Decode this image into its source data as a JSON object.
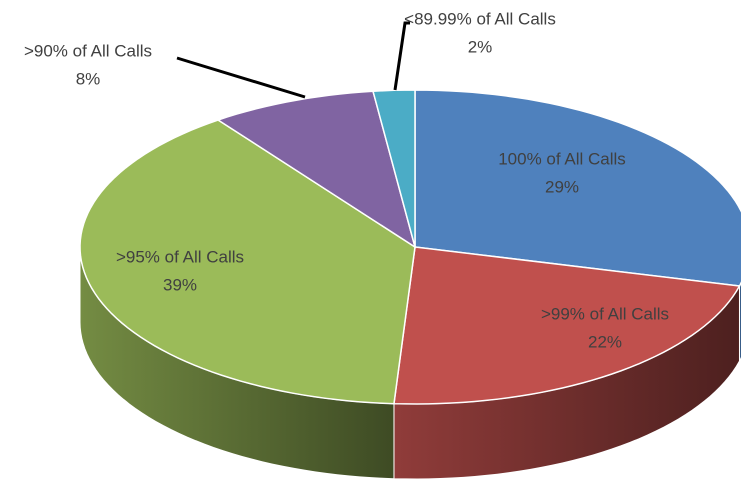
{
  "chart_data": {
    "type": "pie",
    "categories": [
      "100% of All Calls",
      ">99% of All Calls",
      ">95% of All Calls",
      ">90% of All Calls",
      "<89.99% of All Calls"
    ],
    "values": [
      29,
      22,
      39,
      8,
      2
    ],
    "value_labels": [
      "29%",
      "22%",
      "39%",
      "8%",
      "2%"
    ],
    "colors": [
      "#4f81bd",
      "#c0504d",
      "#9bbb59",
      "#8064a2",
      "#4bacc6"
    ]
  }
}
